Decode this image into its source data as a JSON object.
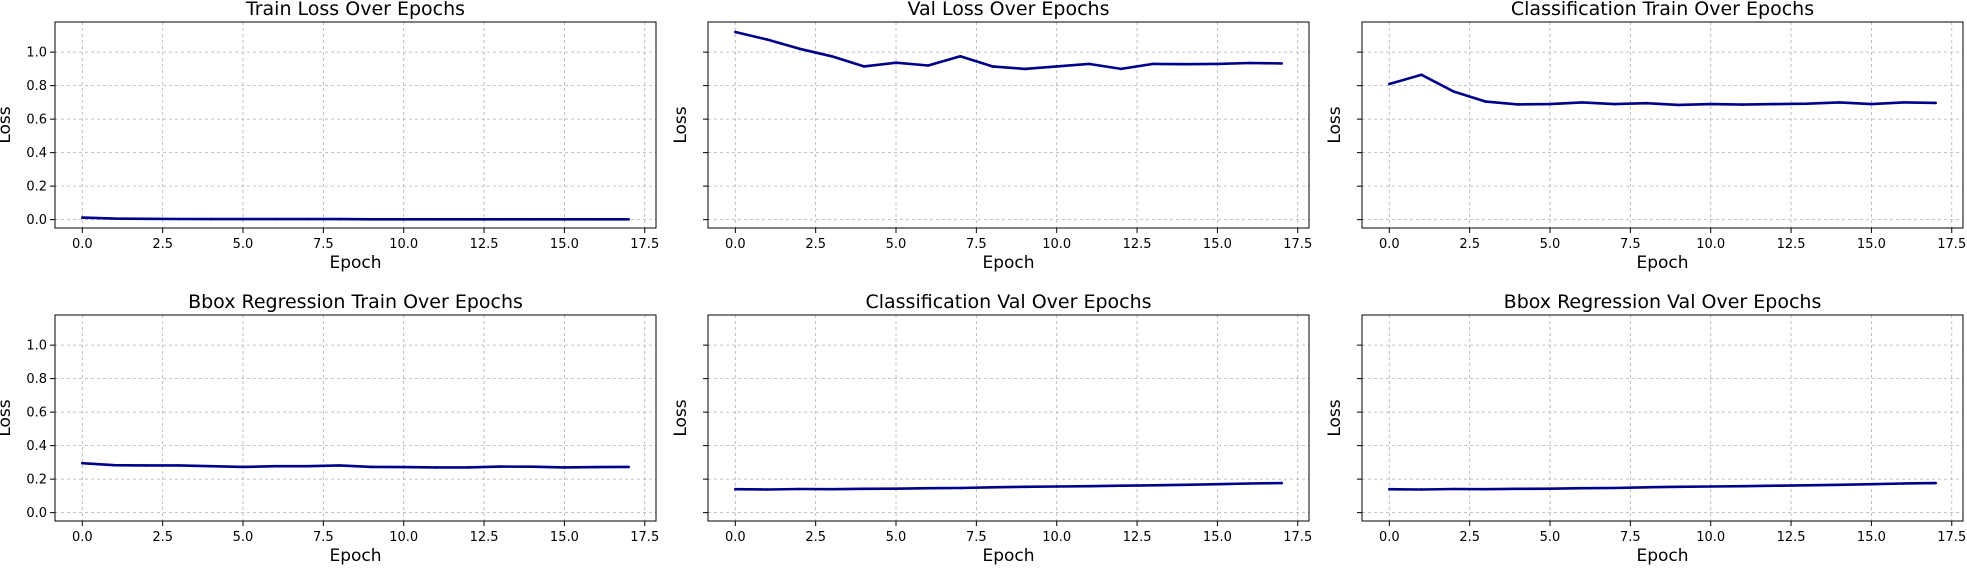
{
  "chart_data": [
    {
      "type": "line",
      "title": "Train Loss Over Epochs",
      "xlabel": "Epoch",
      "ylabel": "Loss",
      "x": [
        0,
        1,
        2,
        3,
        4,
        5,
        6,
        7,
        8,
        9,
        10,
        11,
        12,
        13,
        14,
        15,
        16,
        17
      ],
      "series": [
        {
          "values": [
            0.012,
            0.006,
            0.005,
            0.004,
            0.003,
            0.003,
            0.003,
            0.003,
            0.003,
            0.002,
            0.002,
            0.002,
            0.002,
            0.002,
            0.002,
            0.002,
            0.002,
            0.002
          ]
        }
      ],
      "xlim": [
        -0.85,
        17.85
      ],
      "ylim": [
        -0.05,
        1.18
      ],
      "xticks": [
        "0.0",
        "2.5",
        "5.0",
        "7.5",
        "10.0",
        "12.5",
        "15.0",
        "17.5"
      ],
      "yticks": [
        "0.0",
        "0.2",
        "0.4",
        "0.6",
        "0.8",
        "1.0"
      ],
      "show_yticklabels": true,
      "grid": true,
      "color": "#00008b"
    },
    {
      "type": "line",
      "title": "Val Loss Over Epochs",
      "xlabel": "Epoch",
      "ylabel": "Loss",
      "x": [
        0,
        1,
        2,
        3,
        4,
        5,
        6,
        7,
        8,
        9,
        10,
        11,
        12,
        13,
        14,
        15,
        16,
        17
      ],
      "series": [
        {
          "values": [
            1.12,
            1.075,
            1.02,
            0.975,
            0.915,
            0.937,
            0.92,
            0.975,
            0.915,
            0.9,
            0.915,
            0.93,
            0.9,
            0.93,
            0.928,
            0.93,
            0.935,
            0.933
          ]
        }
      ],
      "xlim": [
        -0.85,
        17.85
      ],
      "ylim": [
        -0.05,
        1.18
      ],
      "xticks": [
        "0.0",
        "2.5",
        "5.0",
        "7.5",
        "10.0",
        "12.5",
        "15.0",
        "17.5"
      ],
      "yticks": [
        "0.0",
        "0.2",
        "0.4",
        "0.6",
        "0.8",
        "1.0"
      ],
      "show_yticklabels": false,
      "grid": true,
      "color": "#00008b"
    },
    {
      "type": "line",
      "title": "Classification Train Over Epochs",
      "xlabel": "Epoch",
      "ylabel": "Loss",
      "x": [
        0,
        1,
        2,
        3,
        4,
        5,
        6,
        7,
        8,
        9,
        10,
        11,
        12,
        13,
        14,
        15,
        16,
        17
      ],
      "series": [
        {
          "values": [
            0.81,
            0.865,
            0.765,
            0.705,
            0.688,
            0.69,
            0.7,
            0.69,
            0.695,
            0.685,
            0.69,
            0.687,
            0.69,
            0.692,
            0.7,
            0.69,
            0.7,
            0.697
          ]
        }
      ],
      "xlim": [
        -0.85,
        17.85
      ],
      "ylim": [
        -0.05,
        1.18
      ],
      "xticks": [
        "0.0",
        "2.5",
        "5.0",
        "7.5",
        "10.0",
        "12.5",
        "15.0",
        "17.5"
      ],
      "yticks": [
        "0.0",
        "0.2",
        "0.4",
        "0.6",
        "0.8",
        "1.0"
      ],
      "show_yticklabels": false,
      "grid": true,
      "color": "#00008b"
    },
    {
      "type": "line",
      "title": "Bbox Regression Train Over Epochs",
      "xlabel": "Epoch",
      "ylabel": "Loss",
      "x": [
        0,
        1,
        2,
        3,
        4,
        5,
        6,
        7,
        8,
        9,
        10,
        11,
        12,
        13,
        14,
        15,
        16,
        17
      ],
      "series": [
        {
          "values": [
            0.295,
            0.283,
            0.282,
            0.282,
            0.277,
            0.273,
            0.277,
            0.277,
            0.282,
            0.273,
            0.272,
            0.27,
            0.27,
            0.275,
            0.274,
            0.27,
            0.272,
            0.273
          ]
        }
      ],
      "xlim": [
        -0.85,
        17.85
      ],
      "ylim": [
        -0.05,
        1.18
      ],
      "xticks": [
        "0.0",
        "2.5",
        "5.0",
        "7.5",
        "10.0",
        "12.5",
        "15.0",
        "17.5"
      ],
      "yticks": [
        "0.0",
        "0.2",
        "0.4",
        "0.6",
        "0.8",
        "1.0"
      ],
      "show_yticklabels": true,
      "grid": true,
      "color": "#00008b"
    },
    {
      "type": "line",
      "title": "Classification Val Over Epochs",
      "xlabel": "Epoch",
      "ylabel": "Loss",
      "x": [
        0,
        1,
        2,
        3,
        4,
        5,
        6,
        7,
        8,
        9,
        10,
        11,
        12,
        13,
        14,
        15,
        16,
        17
      ],
      "series": [
        {
          "values": [
            0.14,
            0.138,
            0.141,
            0.14,
            0.142,
            0.143,
            0.146,
            0.147,
            0.151,
            0.154,
            0.156,
            0.158,
            0.161,
            0.163,
            0.166,
            0.17,
            0.174,
            0.176
          ]
        }
      ],
      "xlim": [
        -0.85,
        17.85
      ],
      "ylim": [
        -0.05,
        1.18
      ],
      "xticks": [
        "0.0",
        "2.5",
        "5.0",
        "7.5",
        "10.0",
        "12.5",
        "15.0",
        "17.5"
      ],
      "yticks": [
        "0.0",
        "0.2",
        "0.4",
        "0.6",
        "0.8",
        "1.0"
      ],
      "show_yticklabels": false,
      "grid": true,
      "color": "#00008b"
    },
    {
      "type": "line",
      "title": "Bbox Regression Val Over Epochs",
      "xlabel": "Epoch",
      "ylabel": "Loss",
      "x": [
        0,
        1,
        2,
        3,
        4,
        5,
        6,
        7,
        8,
        9,
        10,
        11,
        12,
        13,
        14,
        15,
        16,
        17
      ],
      "series": [
        {
          "values": [
            0.14,
            0.138,
            0.141,
            0.14,
            0.142,
            0.143,
            0.146,
            0.147,
            0.151,
            0.154,
            0.156,
            0.158,
            0.161,
            0.163,
            0.166,
            0.17,
            0.174,
            0.176
          ]
        }
      ],
      "xlim": [
        -0.85,
        17.85
      ],
      "ylim": [
        -0.05,
        1.18
      ],
      "xticks": [
        "0.0",
        "2.5",
        "5.0",
        "7.5",
        "10.0",
        "12.5",
        "15.0",
        "17.5"
      ],
      "yticks": [
        "0.0",
        "0.2",
        "0.4",
        "0.6",
        "0.8",
        "1.0"
      ],
      "show_yticklabels": false,
      "grid": true,
      "color": "#00008b"
    }
  ]
}
